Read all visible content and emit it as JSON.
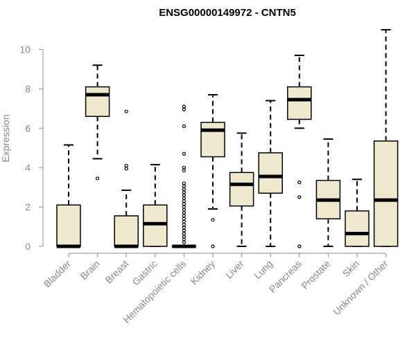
{
  "chart_data": {
    "type": "boxplot",
    "title": "ENSG00000149972 - CNTN5",
    "xlabel": "",
    "ylabel": "Expression",
    "ylim": [
      0,
      11
    ],
    "yticks": [
      0,
      2,
      4,
      6,
      8,
      10
    ],
    "box_fill": "#EEE8CD",
    "box_stroke": "#000000",
    "axis_color": "#888888",
    "categories": [
      "Bladder",
      "Brain",
      "Breast",
      "Gastric",
      "Hematopoietic cells",
      "Kidney",
      "Liver",
      "Lung",
      "Pancreas",
      "Prostate",
      "Skin",
      "Unknown / Other"
    ],
    "boxes": [
      {
        "category": "Bladder",
        "min": 0,
        "q1": 0,
        "median": 0,
        "q3": 2.1,
        "max": 5.15,
        "outliers": []
      },
      {
        "category": "Brain",
        "min": 4.45,
        "q1": 6.6,
        "median": 7.7,
        "q3": 8.1,
        "max": 9.2,
        "outliers": [
          3.45
        ]
      },
      {
        "category": "Breast",
        "min": 0,
        "q1": 0,
        "median": 0,
        "q3": 1.55,
        "max": 2.85,
        "outliers": [
          3.95,
          4.1,
          6.85
        ]
      },
      {
        "category": "Gastric",
        "min": 0,
        "q1": 0,
        "median": 1.15,
        "q3": 2.1,
        "max": 4.15,
        "outliers": []
      },
      {
        "category": "Hematopoietic cells",
        "min": 0,
        "q1": 0,
        "median": 0,
        "q3": 0,
        "max": 0,
        "outliers": [
          0.2,
          0.35,
          0.5,
          0.65,
          0.8,
          0.95,
          1.1,
          1.25,
          1.4,
          1.55,
          1.7,
          1.85,
          2.0,
          2.15,
          2.3,
          2.45,
          2.6,
          2.75,
          2.9,
          3.05,
          3.2,
          3.85,
          4.0,
          4.7,
          6.1,
          6.95,
          7.1
        ]
      },
      {
        "category": "Kidney",
        "min": 1.9,
        "q1": 4.55,
        "median": 5.9,
        "q3": 6.3,
        "max": 7.7,
        "outliers": [
          0,
          1.35
        ]
      },
      {
        "category": "Liver",
        "min": 0,
        "q1": 2.05,
        "median": 3.15,
        "q3": 3.75,
        "max": 5.75,
        "outliers": []
      },
      {
        "category": "Lung",
        "min": 0,
        "q1": 2.7,
        "median": 3.55,
        "q3": 4.75,
        "max": 7.4,
        "outliers": []
      },
      {
        "category": "Pancreas",
        "min": 6.0,
        "q1": 6.45,
        "median": 7.45,
        "q3": 8.1,
        "max": 9.7,
        "outliers": [
          0,
          2.5,
          3.25
        ]
      },
      {
        "category": "Prostate",
        "min": 0,
        "q1": 1.4,
        "median": 2.35,
        "q3": 3.35,
        "max": 5.45,
        "outliers": []
      },
      {
        "category": "Skin",
        "min": 0,
        "q1": 0,
        "median": 0.65,
        "q3": 1.8,
        "max": 3.4,
        "outliers": []
      },
      {
        "category": "Unknown / Other",
        "min": 0,
        "q1": 0,
        "median": 2.35,
        "q3": 5.35,
        "max": 11.0,
        "outliers": []
      }
    ]
  }
}
